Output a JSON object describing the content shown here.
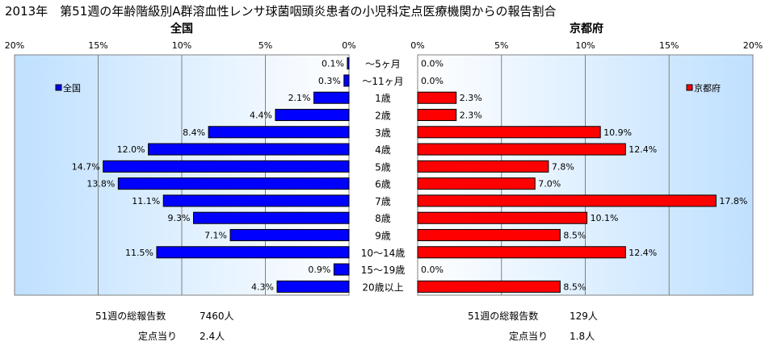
{
  "title": "2013年　第51週の年齢階級別A群溶血性レンサ球菌咽頭炎患者の小児科定点医療機関からの報告割合",
  "chart_data": [
    {
      "type": "bar",
      "orientation": "horizontal",
      "direction": "right-to-left",
      "title": "全国",
      "legend": "全国",
      "legend_position": "top-left",
      "color": "#0000ff",
      "xlim": [
        0,
        20
      ],
      "ticks": [
        "20%",
        "15%",
        "10%",
        "5%",
        "0%"
      ],
      "grid": true,
      "categories": [
        "～5ヶ月",
        "～11ヶ月",
        "1歳",
        "2歳",
        "3歳",
        "4歳",
        "5歳",
        "6歳",
        "7歳",
        "8歳",
        "9歳",
        "10～14歳",
        "15～19歳",
        "20歳以上"
      ],
      "values": [
        0.1,
        0.3,
        2.1,
        4.4,
        8.4,
        12.0,
        14.7,
        13.8,
        11.1,
        9.3,
        7.1,
        11.5,
        0.9,
        4.3
      ],
      "labels": [
        "0.1%",
        "0.3%",
        "2.1%",
        "4.4%",
        "8.4%",
        "12.0%",
        "14.7%",
        "13.8%",
        "11.1%",
        "9.3%",
        "7.1%",
        "11.5%",
        "0.9%",
        "4.3%"
      ]
    },
    {
      "type": "bar",
      "orientation": "horizontal",
      "direction": "left-to-right",
      "title": "京都府",
      "legend": "京都府",
      "legend_position": "top-right",
      "color": "#ff0000",
      "xlim": [
        0,
        20
      ],
      "ticks": [
        "0%",
        "5%",
        "10%",
        "15%",
        "20%"
      ],
      "grid": true,
      "categories": [
        "～5ヶ月",
        "～11ヶ月",
        "1歳",
        "2歳",
        "3歳",
        "4歳",
        "5歳",
        "6歳",
        "7歳",
        "8歳",
        "9歳",
        "10～14歳",
        "15～19歳",
        "20歳以上"
      ],
      "values": [
        0.0,
        0.0,
        2.3,
        2.3,
        10.9,
        12.4,
        7.8,
        7.0,
        17.8,
        10.1,
        8.5,
        12.4,
        0.0,
        8.5
      ],
      "labels": [
        "0.0%",
        "0.0%",
        "2.3%",
        "2.3%",
        "10.9%",
        "12.4%",
        "7.8%",
        "7.0%",
        "17.8%",
        "10.1%",
        "8.5%",
        "12.4%",
        "0.0%",
        "8.5%"
      ]
    }
  ],
  "footer": {
    "national_total_label": "51週の総報告数",
    "national_total_value": "7460人",
    "national_per_site_label": "定点当り",
    "national_per_site_value": "2.4人",
    "kyoto_total_label": "51週の総報告数",
    "kyoto_total_value": "129人",
    "kyoto_per_site_label": "定点当り",
    "kyoto_per_site_value": "1.8人"
  }
}
